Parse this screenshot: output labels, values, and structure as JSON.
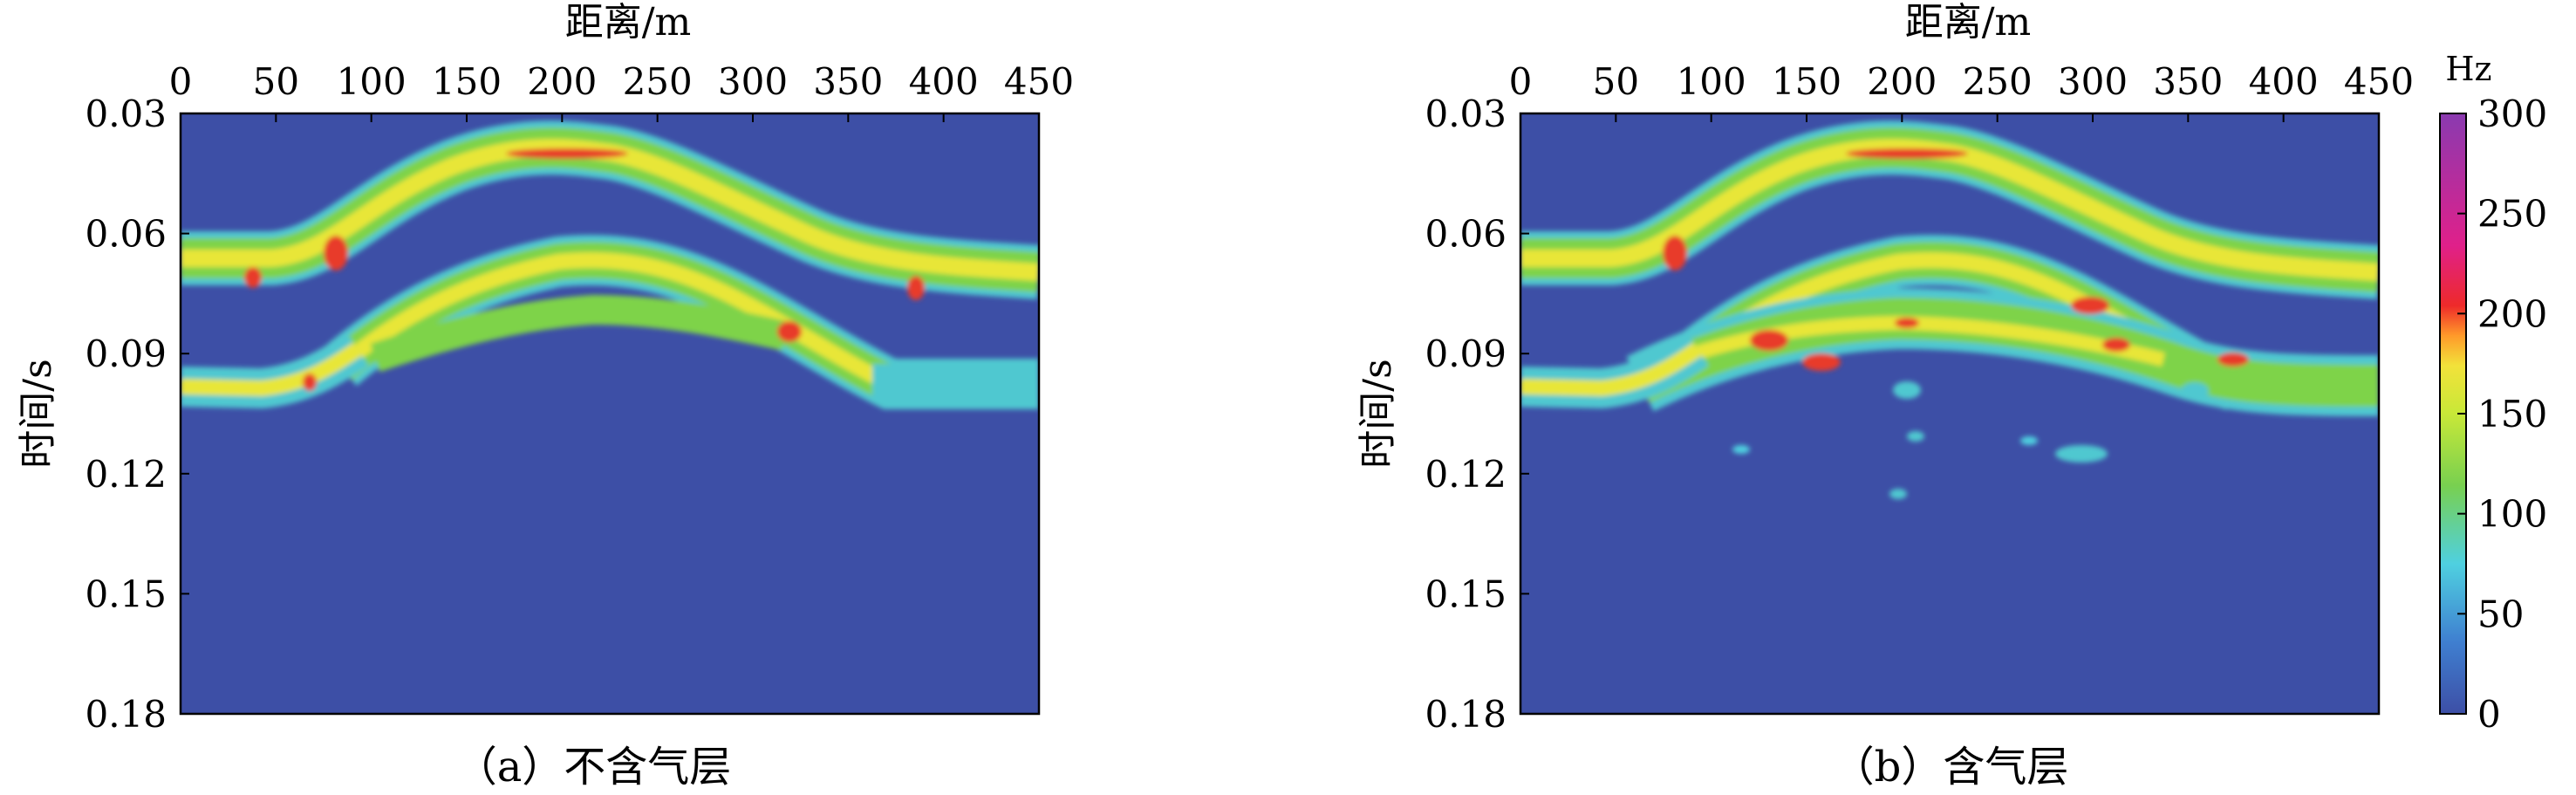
{
  "chart_data": [
    {
      "type": "heatmap",
      "caption": "（a）不含气层",
      "xlabel": "距离/m",
      "ylabel": "时间/s",
      "xlim": [
        0,
        450
      ],
      "ylim": [
        0.03,
        0.18
      ],
      "x_ticks": [
        "0",
        "50",
        "100",
        "150",
        "200",
        "250",
        "300",
        "350",
        "400",
        "450"
      ],
      "y_ticks": [
        "0.03",
        "0.06",
        "0.09",
        "0.12",
        "0.15",
        "0.18"
      ],
      "grid": false,
      "description_layers": [
        {
          "name": "flat-reflector-upper",
          "time_s": 0.068
        },
        {
          "name": "anticline-top",
          "apex_x_m": 200,
          "apex_time_s": 0.04
        },
        {
          "name": "anticline-second",
          "apex_x_m": 200,
          "apex_time_s": 0.066
        },
        {
          "name": "flat-reflector-lower",
          "time_s": 0.097
        }
      ]
    },
    {
      "type": "heatmap",
      "caption": "（b）含气层",
      "xlabel": "距离/m",
      "ylabel": "时间/s",
      "xlim": [
        0,
        450
      ],
      "ylim": [
        0.03,
        0.18
      ],
      "x_ticks": [
        "0",
        "50",
        "100",
        "150",
        "200",
        "250",
        "300",
        "350",
        "400",
        "450"
      ],
      "y_ticks": [
        "0.03",
        "0.06",
        "0.09",
        "0.12",
        "0.15",
        "0.18"
      ],
      "grid": false
    }
  ],
  "colorbar": {
    "unit": "Hz",
    "range": [
      0,
      300
    ],
    "ticks": [
      "300",
      "250",
      "200",
      "150",
      "100",
      "50",
      "0"
    ],
    "colors": [
      "#3d4fa6",
      "#3f7fd0",
      "#4fd0e0",
      "#78d050",
      "#c8e838",
      "#f2e23a",
      "#ff9a2a",
      "#ee2a2a",
      "#e0208a",
      "#8a3ab0"
    ]
  },
  "colors": {
    "background": "#3d4fa6",
    "band_outer": "#50c8d0",
    "band_mid": "#7ed34a",
    "band_core": "#e8e638",
    "hot": "#e83a2a"
  }
}
